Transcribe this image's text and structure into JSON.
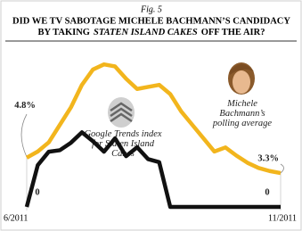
{
  "chart_data": {
    "type": "line",
    "figure_label": "Fig. 5",
    "title": [
      "DID WE TV SABOTAGE MICHELE BACHMANN’S CANDIDACY",
      "BY TAKING",
      "STATEN ISLAND CAKES",
      "OFF THE AIR?"
    ],
    "categories": [
      "6/2011",
      null,
      null,
      null,
      null,
      null,
      null,
      null,
      null,
      null,
      null,
      null,
      null,
      null,
      null,
      null,
      null,
      null,
      null,
      null,
      null,
      null,
      null,
      "11/2011"
    ],
    "series": [
      {
        "name": "Michele Bachmann’s polling average",
        "color": "#f2b51d",
        "values": [
          4.8,
          5.4,
          6.3,
          8.0,
          9.7,
          11.9,
          13.4,
          13.9,
          13.7,
          12.5,
          11.5,
          11.7,
          11.9,
          11.0,
          9.3,
          8.0,
          6.7,
          5.4,
          5.8,
          5.0,
          4.3,
          3.8,
          3.5,
          3.3
        ],
        "value_labels": [
          "4.8%",
          null,
          null,
          null,
          null,
          null,
          null,
          null,
          null,
          null,
          null,
          null,
          null,
          null,
          null,
          null,
          null,
          null,
          null,
          null,
          null,
          null,
          null,
          "3.3%"
        ]
      },
      {
        "name": "Google Trends index for Staten Island Cakes",
        "color": "#111111",
        "axis": "y2",
        "values": [
          0,
          56,
          74,
          76,
          86,
          100,
          88,
          74,
          92,
          68,
          80,
          64,
          60,
          0,
          0,
          0,
          0,
          0,
          0,
          0,
          0,
          0,
          0,
          0
        ]
      }
    ],
    "ylim": [
      0,
      16
    ],
    "y2lim": [
      0,
      220
    ]
  }
}
